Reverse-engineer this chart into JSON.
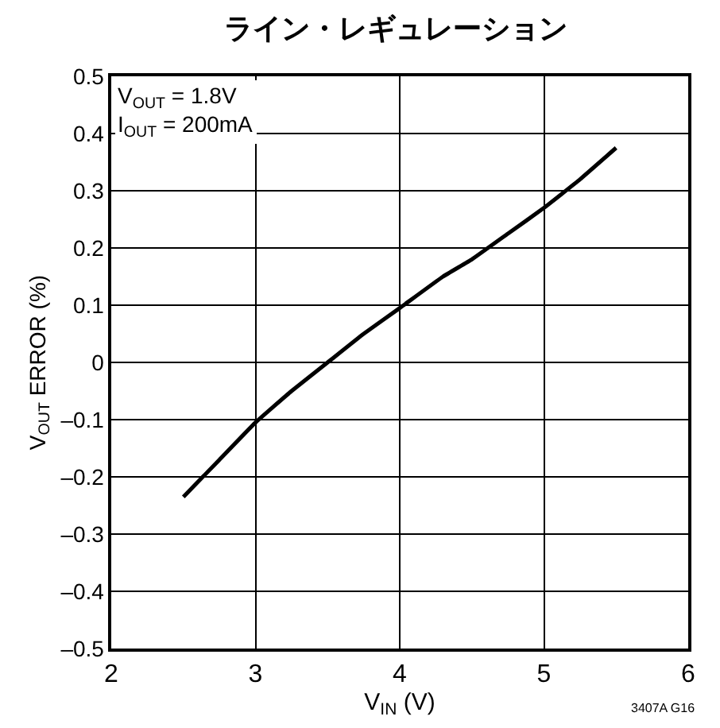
{
  "chart_data": {
    "type": "line",
    "title": "ライン・レギュレーション",
    "xlabel": "V$_{IN}$ (V)",
    "ylabel": "V$_{OUT}$ ERROR (%)",
    "x": [
      2.5,
      2.75,
      3.0,
      3.25,
      3.5,
      3.75,
      4.0,
      4.3,
      4.5,
      4.75,
      5.0,
      5.25,
      5.5
    ],
    "series": [
      {
        "color": "#000000",
        "values": [
          -0.235,
          -0.17,
          -0.105,
          -0.05,
          0.0,
          0.05,
          0.095,
          0.15,
          0.18,
          0.225,
          0.27,
          0.32,
          0.375
        ]
      }
    ],
    "xlim": [
      2,
      6
    ],
    "xticks": [
      2,
      3,
      4,
      5,
      6
    ],
    "ylim": [
      -0.5,
      0.5
    ],
    "yticks": [
      {
        "value": -0.5,
        "label": "–0.5"
      },
      {
        "value": -0.4,
        "label": "–0.4"
      },
      {
        "value": -0.3,
        "label": "–0.3"
      },
      {
        "value": -0.2,
        "label": "–0.2"
      },
      {
        "value": -0.1,
        "label": "–0.1"
      },
      0,
      0.1,
      0.2,
      0.3,
      0.4,
      0.5
    ],
    "annotations": [
      "V$_{OUT}$ = 1.8V\nI$_{OUT}$ = 200mA",
      "3407A G16"
    ],
    "grid": true,
    "marker": "none",
    "line_style": "solid"
  }
}
